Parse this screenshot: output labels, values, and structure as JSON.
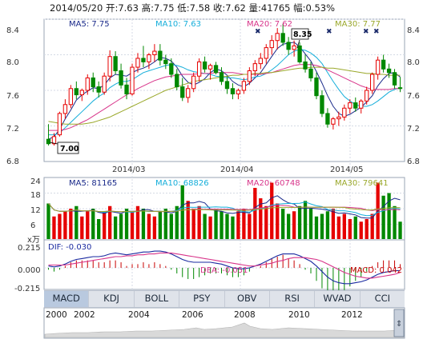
{
  "header": {
    "date": "2014/05/20",
    "open": "开:7.63",
    "high": "高:7.75",
    "low": "低:7.58",
    "close": "收:7.62",
    "volume": "量:41765",
    "change": "幅:0.53%"
  },
  "colors": {
    "up": "#e60000",
    "down": "#008800",
    "ma5": "#1a2a8a",
    "ma10": "#15aeda",
    "ma20": "#d8348a",
    "ma30": "#9aa82a",
    "macd_up": "#c80000",
    "macd_down": "#008800",
    "dif": "#1a2aa0",
    "dea": "#d8348a"
  },
  "price_panel": {
    "ma_labels": [
      "MA5: 7.75",
      "MA10: 7.63",
      "MA20: 7.62",
      "MA30: 7.77"
    ],
    "y_ticks": [
      "8.4",
      "8.0",
      "7.6",
      "7.2",
      "6.8"
    ],
    "x_ticks": [
      "2014/03",
      "2014/04",
      "2014/05"
    ],
    "max_label": "8.35",
    "min_label": "7.00"
  },
  "volume_panel": {
    "ma_labels": [
      "MA5: 81165",
      "MA10: 68826",
      "MA20: 60748",
      "MA30: 79641"
    ],
    "y_ticks": [
      "24",
      "18",
      "12",
      "6"
    ],
    "unit": "x万"
  },
  "macd_panel": {
    "labels": [
      "DIF: -0.030",
      "DEA: -0.051",
      "MACD: 0.042"
    ],
    "y_ticks": [
      "0.215",
      "0.000",
      "-0.215"
    ]
  },
  "tabs": [
    "MACD",
    "KDJ",
    "BOLL",
    "PSY",
    "OBV",
    "RSI",
    "WVAD",
    "CCI"
  ],
  "timeline": {
    "years": [
      "2000",
      "2002",
      "2004",
      "2006",
      "2008",
      "2010",
      "2012"
    ]
  },
  "chart_data": {
    "type": "candlestick",
    "title": "",
    "ylim": [
      6.8,
      8.4
    ],
    "x_ticks": [
      "2014/03",
      "2014/04",
      "2014/05"
    ],
    "latest": {
      "date": "2014/05/20",
      "open": 7.63,
      "high": 7.75,
      "low": 7.58,
      "close": 7.62,
      "volume": 41765,
      "change_pct": 0.53
    },
    "max_point": 8.35,
    "min_point": 7.0,
    "moving_averages": {
      "MA5": 7.75,
      "MA10": 7.63,
      "MA20": 7.62,
      "MA30": 7.77
    },
    "candles": [
      [
        7.05,
        7.22,
        6.98,
        7.0
      ],
      [
        7.0,
        7.12,
        6.98,
        7.08
      ],
      [
        7.1,
        7.36,
        7.08,
        7.34
      ],
      [
        7.34,
        7.5,
        7.28,
        7.44
      ],
      [
        7.44,
        7.66,
        7.4,
        7.62
      ],
      [
        7.62,
        7.7,
        7.5,
        7.55
      ],
      [
        7.55,
        7.62,
        7.48,
        7.6
      ],
      [
        7.6,
        7.78,
        7.55,
        7.74
      ],
      [
        7.74,
        7.8,
        7.58,
        7.64
      ],
      [
        7.64,
        7.7,
        7.52,
        7.58
      ],
      [
        7.58,
        7.8,
        7.55,
        7.76
      ],
      [
        7.76,
        8.05,
        7.7,
        7.98
      ],
      [
        7.98,
        8.04,
        7.78,
        7.82
      ],
      [
        7.82,
        7.9,
        7.62,
        7.66
      ],
      [
        7.66,
        7.74,
        7.5,
        7.56
      ],
      [
        7.56,
        7.9,
        7.54,
        7.86
      ],
      [
        7.86,
        8.02,
        7.8,
        7.96
      ],
      [
        7.96,
        8.1,
        7.86,
        7.92
      ],
      [
        7.92,
        8.02,
        7.84,
        8.0
      ],
      [
        8.0,
        8.12,
        7.92,
        8.04
      ],
      [
        8.04,
        8.12,
        7.88,
        7.94
      ],
      [
        7.94,
        8.0,
        7.84,
        7.9
      ],
      [
        7.9,
        7.96,
        7.74,
        7.78
      ],
      [
        7.78,
        7.84,
        7.6,
        7.64
      ],
      [
        7.64,
        7.74,
        7.48,
        7.52
      ],
      [
        7.52,
        7.66,
        7.46,
        7.62
      ],
      [
        7.62,
        7.8,
        7.58,
        7.76
      ],
      [
        7.76,
        7.96,
        7.7,
        7.92
      ],
      [
        7.92,
        7.98,
        7.8,
        7.84
      ],
      [
        7.84,
        7.9,
        7.72,
        7.88
      ],
      [
        7.88,
        7.92,
        7.78,
        7.8
      ],
      [
        7.8,
        7.86,
        7.66,
        7.7
      ],
      [
        7.7,
        7.76,
        7.56,
        7.62
      ],
      [
        7.62,
        7.68,
        7.5,
        7.56
      ],
      [
        7.56,
        7.62,
        7.5,
        7.6
      ],
      [
        7.6,
        7.74,
        7.56,
        7.7
      ],
      [
        7.7,
        7.86,
        7.66,
        7.82
      ],
      [
        7.82,
        7.94,
        7.76,
        7.9
      ],
      [
        7.9,
        8.02,
        7.84,
        7.96
      ],
      [
        7.96,
        8.12,
        7.9,
        8.08
      ],
      [
        8.08,
        8.22,
        8.0,
        8.16
      ],
      [
        8.16,
        8.3,
        8.06,
        8.24
      ],
      [
        8.24,
        8.35,
        8.1,
        8.14
      ],
      [
        8.14,
        8.2,
        8.0,
        8.06
      ],
      [
        8.06,
        8.16,
        7.98,
        8.1
      ],
      [
        8.1,
        8.14,
        7.9,
        7.92
      ],
      [
        7.92,
        8.0,
        7.8,
        7.84
      ],
      [
        7.84,
        7.92,
        7.7,
        7.74
      ],
      [
        7.74,
        7.8,
        7.5,
        7.54
      ],
      [
        7.54,
        7.6,
        7.3,
        7.34
      ],
      [
        7.34,
        7.4,
        7.18,
        7.22
      ],
      [
        7.22,
        7.3,
        7.16,
        7.28
      ],
      [
        7.28,
        7.36,
        7.2,
        7.3
      ],
      [
        7.3,
        7.44,
        7.26,
        7.4
      ],
      [
        7.4,
        7.5,
        7.34,
        7.46
      ],
      [
        7.46,
        7.52,
        7.36,
        7.4
      ],
      [
        7.4,
        7.5,
        7.34,
        7.48
      ],
      [
        7.48,
        7.64,
        7.44,
        7.6
      ],
      [
        7.6,
        7.8,
        7.56,
        7.78
      ],
      [
        7.78,
        7.98,
        7.72,
        7.94
      ],
      [
        7.94,
        8.0,
        7.8,
        7.84
      ],
      [
        7.84,
        7.9,
        7.74,
        7.8
      ],
      [
        7.8,
        7.84,
        7.62,
        7.66
      ],
      [
        7.63,
        7.75,
        7.58,
        7.62
      ]
    ],
    "volumes": [
      14,
      9,
      10,
      11,
      12,
      13,
      9,
      11,
      12,
      8,
      11,
      13,
      9,
      10,
      12,
      11,
      13,
      12,
      10,
      9,
      11,
      12,
      10,
      13,
      21,
      15,
      12,
      13,
      10,
      9,
      12,
      11,
      10,
      9,
      11,
      12,
      10,
      20,
      16,
      13,
      22,
      14,
      12,
      10,
      11,
      13,
      15,
      12,
      9,
      10,
      11,
      12,
      9,
      10,
      8,
      9,
      7,
      8,
      10,
      22,
      17,
      18,
      13,
      7
    ],
    "series": [
      {
        "name": "MA5",
        "values": [
          7.05,
          7.08,
          7.16,
          7.28,
          7.38,
          7.49,
          7.55,
          7.59,
          7.63,
          7.62,
          7.66,
          7.74,
          7.78,
          7.77,
          7.76,
          7.8,
          7.83,
          7.85,
          7.88,
          7.92,
          7.97,
          7.96,
          7.93,
          7.86,
          7.76,
          7.69,
          7.66,
          7.69,
          7.73,
          7.8,
          7.84,
          7.82,
          7.77,
          7.7,
          7.66,
          7.64,
          7.68,
          7.74,
          7.8,
          7.89,
          7.98,
          8.07,
          8.12,
          8.13,
          8.14,
          8.09,
          8.01,
          7.93,
          7.81,
          7.68,
          7.54,
          7.42,
          7.34,
          7.31,
          7.33,
          7.37,
          7.41,
          7.47,
          7.54,
          7.65,
          7.73,
          7.79,
          7.8,
          7.75
        ]
      },
      {
        "name": "MA10",
        "values": [
          7.1,
          7.1,
          7.12,
          7.18,
          7.24,
          7.3,
          7.36,
          7.42,
          7.48,
          7.53,
          7.57,
          7.63,
          7.67,
          7.7,
          7.7,
          7.72,
          7.76,
          7.8,
          7.82,
          7.84,
          7.86,
          7.88,
          7.89,
          7.88,
          7.86,
          7.83,
          7.81,
          7.8,
          7.79,
          7.78,
          7.76,
          7.75,
          7.74,
          7.74,
          7.73,
          7.72,
          7.73,
          7.75,
          7.76,
          7.79,
          7.83,
          7.88,
          7.94,
          8.0,
          8.04,
          8.06,
          8.05,
          8.02,
          7.97,
          7.9,
          7.8,
          7.7,
          7.61,
          7.53,
          7.48,
          7.44,
          7.42,
          7.42,
          7.44,
          7.48,
          7.53,
          7.58,
          7.61,
          7.63
        ]
      },
      {
        "name": "MA20",
        "values": [
          7.15,
          7.15,
          7.15,
          7.16,
          7.18,
          7.21,
          7.24,
          7.27,
          7.31,
          7.35,
          7.39,
          7.43,
          7.47,
          7.51,
          7.55,
          7.58,
          7.62,
          7.65,
          7.68,
          7.71,
          7.73,
          7.75,
          7.76,
          7.77,
          7.78,
          7.78,
          7.78,
          7.79,
          7.79,
          7.79,
          7.8,
          7.8,
          7.8,
          7.8,
          7.79,
          7.78,
          7.78,
          7.78,
          7.78,
          7.79,
          7.8,
          7.82,
          7.84,
          7.86,
          7.88,
          7.89,
          7.89,
          7.89,
          7.88,
          7.86,
          7.83,
          7.8,
          7.77,
          7.74,
          7.71,
          7.68,
          7.65,
          7.63,
          7.61,
          7.61,
          7.61,
          7.61,
          7.62,
          7.62
        ]
      },
      {
        "name": "MA30",
        "values": [
          7.25,
          7.24,
          7.23,
          7.22,
          7.22,
          7.22,
          7.22,
          7.23,
          7.24,
          7.26,
          7.28,
          7.3,
          7.33,
          7.36,
          7.39,
          7.42,
          7.45,
          7.48,
          7.51,
          7.54,
          7.57,
          7.6,
          7.62,
          7.64,
          7.66,
          7.68,
          7.7,
          7.71,
          7.72,
          7.73,
          7.74,
          7.75,
          7.76,
          7.77,
          7.77,
          7.78,
          7.78,
          7.79,
          7.79,
          7.8,
          7.8,
          7.81,
          7.82,
          7.83,
          7.84,
          7.85,
          7.85,
          7.86,
          7.86,
          7.86,
          7.85,
          7.85,
          7.84,
          7.83,
          7.82,
          7.81,
          7.8,
          7.79,
          7.79,
          7.78,
          7.78,
          7.77,
          7.77,
          7.77
        ]
      }
    ],
    "macd": {
      "dif": [
        0.02,
        0.01,
        0.02,
        0.04,
        0.07,
        0.09,
        0.1,
        0.11,
        0.12,
        0.12,
        0.13,
        0.15,
        0.16,
        0.15,
        0.14,
        0.15,
        0.16,
        0.17,
        0.17,
        0.18,
        0.18,
        0.17,
        0.15,
        0.12,
        0.09,
        0.07,
        0.06,
        0.06,
        0.06,
        0.06,
        0.05,
        0.04,
        0.02,
        0.0,
        -0.01,
        -0.01,
        0.0,
        0.02,
        0.04,
        0.07,
        0.1,
        0.13,
        0.15,
        0.15,
        0.15,
        0.13,
        0.1,
        0.07,
        0.02,
        -0.04,
        -0.1,
        -0.14,
        -0.16,
        -0.17,
        -0.17,
        -0.16,
        -0.15,
        -0.13,
        -0.1,
        -0.07,
        -0.05,
        -0.04,
        -0.03,
        -0.03
      ],
      "dea": [
        0.03,
        0.03,
        0.03,
        0.03,
        0.04,
        0.05,
        0.06,
        0.07,
        0.08,
        0.09,
        0.1,
        0.11,
        0.12,
        0.12,
        0.13,
        0.13,
        0.14,
        0.14,
        0.15,
        0.15,
        0.16,
        0.16,
        0.16,
        0.15,
        0.14,
        0.13,
        0.12,
        0.11,
        0.1,
        0.09,
        0.08,
        0.07,
        0.06,
        0.05,
        0.04,
        0.03,
        0.02,
        0.02,
        0.03,
        0.04,
        0.05,
        0.07,
        0.08,
        0.1,
        0.11,
        0.11,
        0.11,
        0.1,
        0.09,
        0.07,
        0.04,
        0.01,
        -0.02,
        -0.05,
        -0.07,
        -0.09,
        -0.1,
        -0.11,
        -0.11,
        -0.1,
        -0.09,
        -0.08,
        -0.07,
        -0.05
      ]
    }
  }
}
